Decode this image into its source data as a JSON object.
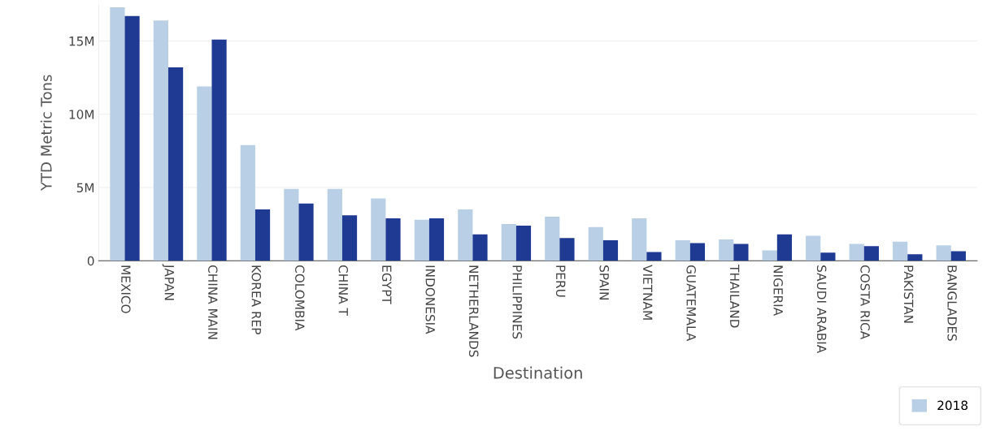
{
  "chart_data": {
    "type": "bar",
    "xlabel": "Destination",
    "ylabel": "YTD Metric Tons",
    "categories": [
      "MEXICO",
      "JAPAN",
      "CHINA MAIN",
      "KOREA REP",
      "COLOMBIA",
      "CHINA T",
      "EGYPT",
      "INDONESIA",
      "NETHERLANDS",
      "PHILIPPINES",
      "PERU",
      "SPAIN",
      "VIETNAM",
      "GUATEMALA",
      "THAILAND",
      "NIGERIA",
      "SAUDI ARABIA",
      "COSTA RICA",
      "PAKISTAN",
      "BANGLADES"
    ],
    "series": [
      {
        "name": "2018",
        "color": "#b8cfe6",
        "values": [
          17.3,
          16.4,
          11.9,
          7.9,
          4.9,
          4.9,
          4.25,
          2.8,
          3.5,
          2.5,
          3.0,
          2.3,
          2.9,
          1.4,
          1.45,
          0.7,
          1.7,
          1.15,
          1.3,
          1.05
        ]
      },
      {
        "color": "#1f3a93",
        "values": [
          16.7,
          13.2,
          15.1,
          3.5,
          3.9,
          3.1,
          2.9,
          2.9,
          1.8,
          2.4,
          1.55,
          1.4,
          0.6,
          1.2,
          1.15,
          1.8,
          0.55,
          1.0,
          0.45,
          0.65
        ]
      }
    ],
    "ylim": [
      0,
      17.5
    ],
    "yticks": [
      {
        "value": 0,
        "label": "0"
      },
      {
        "value": 5,
        "label": "5M"
      },
      {
        "value": 10,
        "label": "10M"
      },
      {
        "value": 15,
        "label": "15M"
      }
    ],
    "grid": "y",
    "legend": "bottom right"
  }
}
